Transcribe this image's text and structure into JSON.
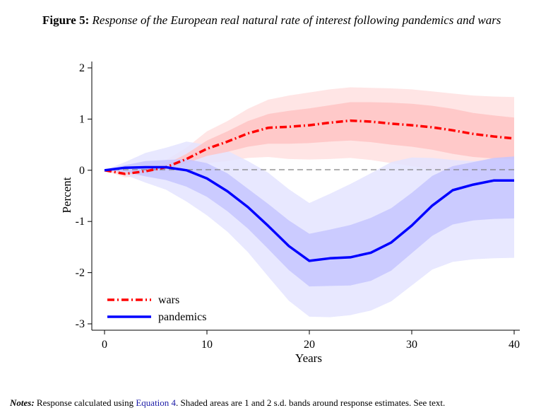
{
  "caption": {
    "label": "Figure 5:",
    "title": "Response of the European real natural rate of interest following pandemics and wars"
  },
  "notes": {
    "label": "Notes:",
    "text_before": "Response calculated using ",
    "link": "Equation 4",
    "text_after": ". Shaded areas are 1 and 2 s.d. bands around response estimates. See text."
  },
  "chart_data": {
    "type": "line",
    "xlabel": "Years",
    "ylabel": "Percent",
    "xlim": [
      0,
      40
    ],
    "ylim": [
      -3,
      2
    ],
    "xticks": [
      0,
      10,
      20,
      30,
      40
    ],
    "xtick_labels": [
      "0",
      "10",
      "20",
      "30",
      "40"
    ],
    "yticks": [
      2,
      1,
      0,
      -1,
      -2,
      -3
    ],
    "ytick_labels": [
      "2",
      "1",
      "0",
      "-1",
      "-2",
      "-3"
    ],
    "zero_reference_line": "dashed gray at y=0",
    "grid": false,
    "legend_position": "bottom-left",
    "x": [
      0,
      2,
      4,
      6,
      8,
      10,
      12,
      14,
      16,
      18,
      20,
      22,
      24,
      26,
      28,
      30,
      32,
      34,
      36,
      38,
      40
    ],
    "series": [
      {
        "name": "wars",
        "color": "#ff0000",
        "style": "dash-dot",
        "values": [
          0,
          -0.07,
          -0.02,
          0.06,
          0.22,
          0.42,
          0.56,
          0.72,
          0.83,
          0.85,
          0.88,
          0.93,
          0.97,
          0.95,
          0.91,
          0.88,
          0.84,
          0.78,
          0.71,
          0.66,
          0.62
        ],
        "band_1sd_lower": [
          0,
          -0.09,
          -0.04,
          0.02,
          0.14,
          0.28,
          0.36,
          0.46,
          0.52,
          0.52,
          0.53,
          0.56,
          0.58,
          0.55,
          0.5,
          0.46,
          0.4,
          0.32,
          0.26,
          0.23,
          0.21
        ],
        "band_1sd_upper": [
          0,
          -0.04,
          0.02,
          0.12,
          0.32,
          0.58,
          0.76,
          0.96,
          1.1,
          1.16,
          1.21,
          1.27,
          1.33,
          1.33,
          1.32,
          1.3,
          1.26,
          1.2,
          1.12,
          1.07,
          1.03
        ],
        "band_2sd_lower": [
          0,
          -0.14,
          -0.1,
          -0.06,
          0.02,
          0.14,
          0.18,
          0.24,
          0.26,
          0.22,
          0.21,
          0.22,
          0.24,
          0.2,
          0.14,
          0.08,
          0.01,
          -0.08,
          -0.16,
          -0.2,
          -0.22
        ],
        "band_2sd_upper": [
          0,
          0.01,
          0.09,
          0.2,
          0.44,
          0.76,
          0.96,
          1.2,
          1.38,
          1.46,
          1.52,
          1.58,
          1.62,
          1.61,
          1.6,
          1.58,
          1.54,
          1.5,
          1.46,
          1.44,
          1.43
        ],
        "band_colors": {
          "inner": "#ffc4c4",
          "outer": "#ffe1e1"
        }
      },
      {
        "name": "pandemics",
        "color": "#0000ff",
        "style": "solid",
        "values": [
          0,
          0.05,
          0.06,
          0.06,
          0.0,
          -0.16,
          -0.41,
          -0.72,
          -1.09,
          -1.48,
          -1.77,
          -1.72,
          -1.7,
          -1.61,
          -1.41,
          -1.08,
          -0.69,
          -0.39,
          -0.28,
          -0.2,
          -0.2
        ],
        "band_1sd_lower": [
          0,
          -0.03,
          -0.12,
          -0.19,
          -0.32,
          -0.52,
          -0.8,
          -1.14,
          -1.54,
          -1.95,
          -2.27,
          -2.26,
          -2.25,
          -2.16,
          -1.96,
          -1.62,
          -1.28,
          -1.06,
          -0.98,
          -0.95,
          -0.94
        ],
        "band_1sd_upper": [
          0,
          0.1,
          0.18,
          0.2,
          0.22,
          0.14,
          -0.06,
          -0.36,
          -0.66,
          -0.98,
          -1.24,
          -1.16,
          -1.07,
          -0.93,
          -0.74,
          -0.44,
          -0.11,
          0.08,
          0.16,
          0.24,
          0.27
        ],
        "band_2sd_lower": [
          0,
          -0.09,
          -0.24,
          -0.38,
          -0.61,
          -0.88,
          -1.2,
          -1.6,
          -2.08,
          -2.55,
          -2.86,
          -2.87,
          -2.83,
          -2.74,
          -2.56,
          -2.25,
          -1.94,
          -1.79,
          -1.74,
          -1.72,
          -1.71
        ],
        "band_2sd_upper": [
          0,
          0.16,
          0.34,
          0.44,
          0.56,
          0.5,
          0.38,
          0.18,
          -0.05,
          -0.37,
          -0.64,
          -0.46,
          -0.27,
          -0.06,
          0.16,
          0.25,
          0.24,
          0.2,
          0.18,
          0.2,
          0.23
        ],
        "band_colors": {
          "inner": "#c6c6ff",
          "outer": "#e4e4ff"
        }
      }
    ]
  }
}
